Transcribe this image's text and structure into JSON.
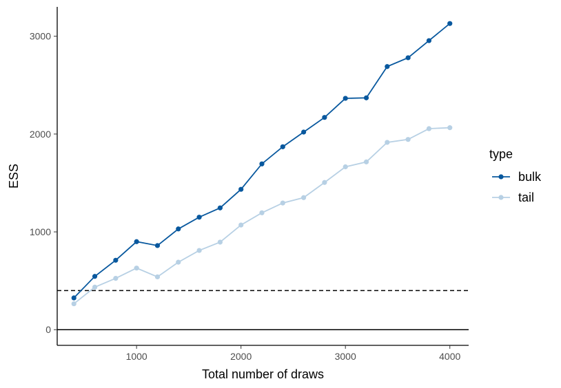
{
  "chart_data": {
    "type": "line",
    "xlabel": "Total number of draws",
    "ylabel": "ESS",
    "xlim": [
      240,
      4180
    ],
    "ylim": [
      -160,
      3300
    ],
    "x_ticks": [
      1000,
      2000,
      3000,
      4000
    ],
    "y_ticks": [
      0,
      1000,
      2000,
      3000
    ],
    "x_tick_labels": [
      "1000",
      "2000",
      "3000",
      "4000"
    ],
    "y_tick_labels": [
      "0",
      "1000",
      "2000",
      "3000"
    ],
    "grid": false,
    "reference_lines": [
      {
        "y": 0,
        "style": "solid"
      },
      {
        "y": 400,
        "style": "dashed"
      }
    ],
    "legend": {
      "title": "type",
      "position": "right",
      "entries": [
        "bulk",
        "tail"
      ]
    },
    "x": [
      400,
      600,
      800,
      1000,
      1200,
      1400,
      1600,
      1800,
      2000,
      2200,
      2400,
      2600,
      2800,
      3000,
      3200,
      3400,
      3600,
      3800,
      4000
    ],
    "series": [
      {
        "name": "bulk",
        "color": "#08589e",
        "values": [
          325,
          545,
          710,
          900,
          860,
          1030,
          1150,
          1245,
          1435,
          1695,
          1870,
          2020,
          2170,
          2365,
          2370,
          2690,
          2780,
          2955,
          3130
        ]
      },
      {
        "name": "tail",
        "color": "#b7d0e4",
        "values": [
          265,
          435,
          525,
          630,
          540,
          690,
          810,
          895,
          1070,
          1195,
          1295,
          1350,
          1505,
          1665,
          1715,
          1915,
          1945,
          2055,
          2065
        ]
      }
    ]
  }
}
